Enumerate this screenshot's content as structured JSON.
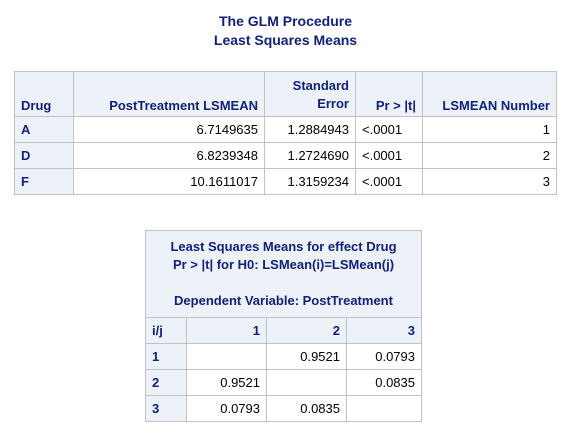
{
  "titles": {
    "procedure": "The GLM Procedure",
    "subtitle": "Least Squares Means"
  },
  "lsmeans_table": {
    "headers": {
      "drug": "Drug",
      "lsmean": "PostTreatment LSMEAN",
      "stderr_line1": "Standard",
      "stderr_line2": "Error",
      "pvalue": "Pr > |t|",
      "number": "LSMEAN Number"
    },
    "rows": [
      {
        "drug": "A",
        "lsmean": "6.7149635",
        "stderr": "1.2884943",
        "pvalue": "<.0001",
        "number": "1"
      },
      {
        "drug": "D",
        "lsmean": "6.8239348",
        "stderr": "1.2724690",
        "pvalue": "<.0001",
        "number": "2"
      },
      {
        "drug": "F",
        "lsmean": "10.1611017",
        "stderr": "1.3159234",
        "pvalue": "<.0001",
        "number": "3"
      }
    ]
  },
  "diff_table": {
    "caption_line1": "Least Squares Means for effect Drug",
    "caption_line2": "Pr > |t| for H0: LSMean(i)=LSMean(j)",
    "caption_line3": "Dependent Variable: PostTreatment",
    "corner": "i/j",
    "columns": [
      "1",
      "2",
      "3"
    ],
    "rows": [
      {
        "label": "1",
        "values": [
          "",
          "0.9521",
          "0.0793"
        ]
      },
      {
        "label": "2",
        "values": [
          "0.9521",
          "",
          "0.0835"
        ]
      },
      {
        "label": "3",
        "values": [
          "0.0793",
          "0.0835",
          ""
        ]
      }
    ]
  },
  "colors": {
    "header_bg": "#edf2f9",
    "header_text": "#112277",
    "border": "#c1c1c1"
  }
}
